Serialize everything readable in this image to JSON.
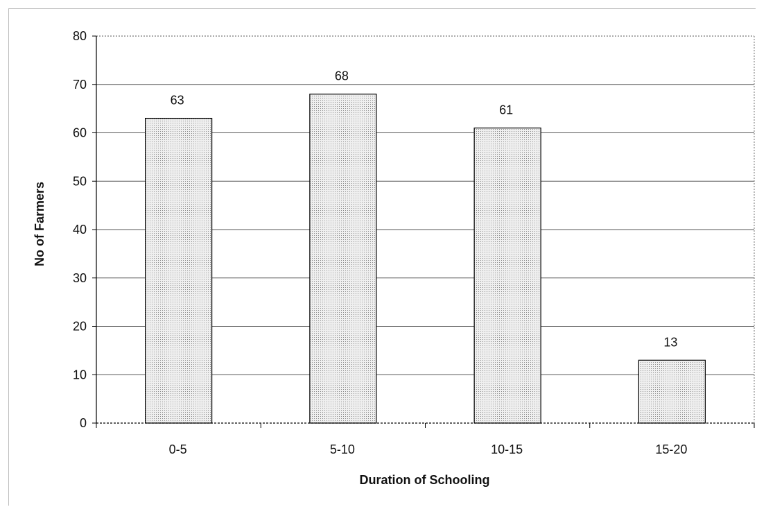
{
  "chart_data": {
    "type": "bar",
    "title": "",
    "xlabel": "Duration of Schooling",
    "ylabel": "No of Farmers",
    "categories": [
      "0-5",
      "5-10",
      "10-15",
      "15-20"
    ],
    "values": [
      63,
      68,
      61,
      13
    ],
    "data_labels": [
      "63",
      "68",
      "61",
      "13"
    ],
    "y_ticks": [
      "0",
      "10",
      "20",
      "30",
      "40",
      "50",
      "60",
      "70",
      "80"
    ],
    "ylim": [
      0,
      80
    ],
    "grid": true,
    "legend": "none",
    "colors": {
      "bar_fill": "#d9d9d9",
      "bar_stroke": "#000000",
      "grid": "#555555"
    }
  }
}
